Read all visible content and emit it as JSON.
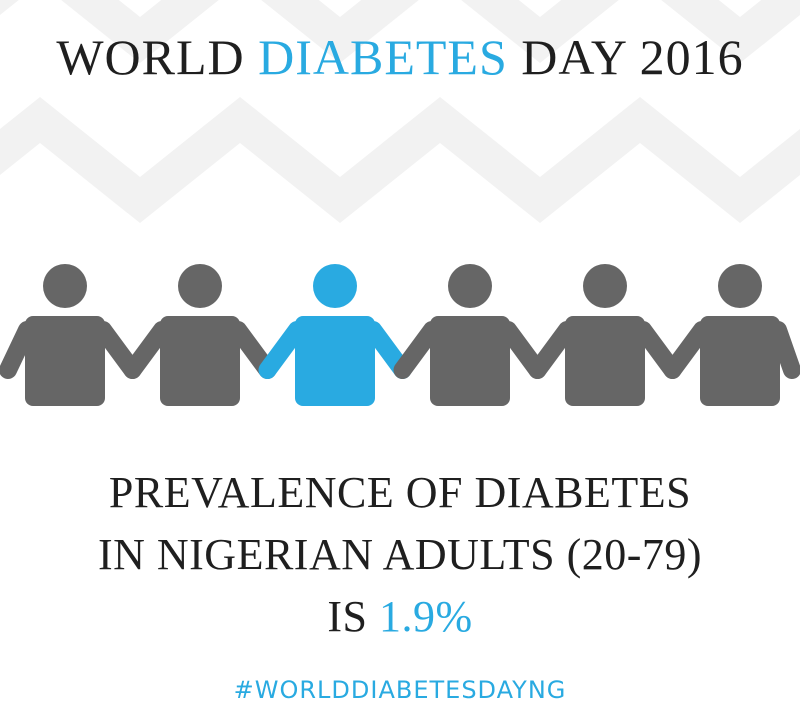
{
  "title": {
    "part1": "WORLD ",
    "highlight": "DIABETES",
    "part2": " DAY 2016"
  },
  "colors": {
    "accent": "#29aae1",
    "figure": "#666666",
    "text": "#1f1f1f",
    "zigzag": "#f2f2f2"
  },
  "people": {
    "figures": [
      {
        "name": "person-1-icon",
        "highlighted": false
      },
      {
        "name": "person-2-icon",
        "highlighted": false
      },
      {
        "name": "person-3-icon",
        "highlighted": true
      },
      {
        "name": "person-4-icon",
        "highlighted": false
      },
      {
        "name": "person-5-icon",
        "highlighted": false
      },
      {
        "name": "person-6-icon",
        "highlighted": false
      }
    ]
  },
  "stat": {
    "line1": "PREVALENCE OF DIABETES",
    "line2": "IN NIGERIAN ADULTS (20-79)",
    "line3_prefix": "IS ",
    "value": "1.9%"
  },
  "hashtag": "#WORLDDIABETESDAYNG"
}
